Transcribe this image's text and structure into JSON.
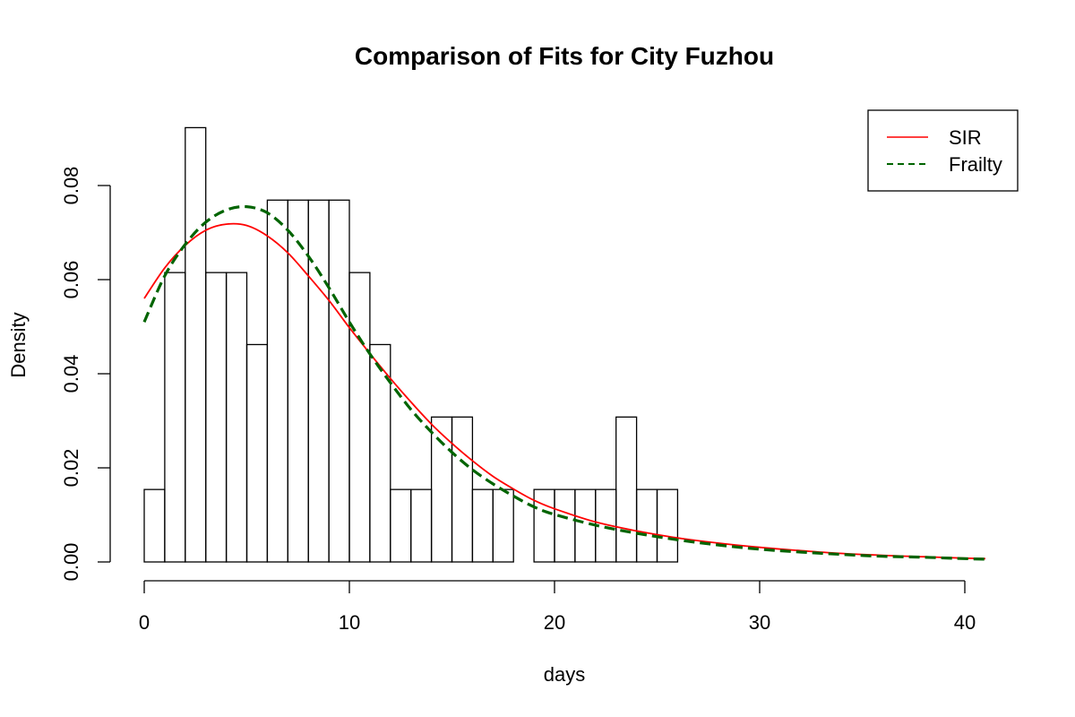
{
  "chart_data": {
    "type": "bar",
    "title": "Comparison of Fits for City Fuzhou",
    "xlabel": "days",
    "ylabel": "Density",
    "xlim": [
      0,
      41
    ],
    "ylim": [
      0,
      0.092
    ],
    "x_ticks": [
      0,
      10,
      20,
      30,
      40
    ],
    "x_tick_labels": [
      "0",
      "10",
      "20",
      "30",
      "40"
    ],
    "y_ticks": [
      0,
      0.02,
      0.04,
      0.06,
      0.08
    ],
    "y_tick_labels": [
      "0.00",
      "0.02",
      "0.04",
      "0.06",
      "0.08"
    ],
    "histogram": {
      "bin_starts": [
        0,
        1,
        2,
        3,
        4,
        5,
        6,
        7,
        8,
        9,
        10,
        11,
        12,
        13,
        14,
        15,
        16,
        17,
        18,
        19,
        20,
        21,
        22,
        23,
        24,
        25
      ],
      "bin_width": 1,
      "densities": [
        0.0154,
        0.0615,
        0.0923,
        0.0615,
        0.0615,
        0.0462,
        0.0769,
        0.0769,
        0.0769,
        0.0769,
        0.0615,
        0.0462,
        0.0154,
        0.0154,
        0.0308,
        0.0308,
        0.0154,
        0.0154,
        0.0,
        0.0154,
        0.0154,
        0.0154,
        0.0154,
        0.0308,
        0.0154,
        0.0154
      ]
    },
    "series": [
      {
        "name": "SIR",
        "color": "#ff0000",
        "style": "solid",
        "x": [
          0,
          1,
          2,
          3,
          4,
          5,
          6,
          7,
          8,
          9,
          10,
          11,
          12,
          13,
          14,
          15,
          16,
          17,
          18,
          19,
          20,
          22,
          24,
          26,
          28,
          30,
          32,
          34,
          36,
          38,
          40,
          41
        ],
        "y": [
          0.056,
          0.0625,
          0.0673,
          0.0705,
          0.0718,
          0.0715,
          0.0693,
          0.0657,
          0.0608,
          0.0556,
          0.0498,
          0.0443,
          0.039,
          0.034,
          0.0293,
          0.0252,
          0.0215,
          0.0182,
          0.0155,
          0.0131,
          0.0113,
          0.0085,
          0.0066,
          0.0051,
          0.004,
          0.0031,
          0.0024,
          0.0018,
          0.0014,
          0.0011,
          0.0008,
          0.0007
        ]
      },
      {
        "name": "Frailty",
        "color": "#006400",
        "style": "dashed",
        "x": [
          0,
          1,
          2,
          3,
          4,
          5,
          6,
          7,
          8,
          9,
          10,
          11,
          12,
          13,
          14,
          15,
          16,
          17,
          18,
          19,
          20,
          22,
          24,
          26,
          28,
          30,
          32,
          34,
          36,
          38,
          40,
          41
        ],
        "y": [
          0.051,
          0.0608,
          0.0675,
          0.0722,
          0.0748,
          0.0755,
          0.0742,
          0.0705,
          0.065,
          0.0583,
          0.051,
          0.0442,
          0.0381,
          0.0324,
          0.0276,
          0.0233,
          0.0196,
          0.0166,
          0.014,
          0.0117,
          0.0101,
          0.0078,
          0.0061,
          0.0047,
          0.0036,
          0.0027,
          0.0021,
          0.0016,
          0.0012,
          0.001,
          0.0007,
          0.0006
        ]
      }
    ],
    "legend": {
      "position": "top-right",
      "entries": [
        "SIR",
        "Frailty"
      ]
    },
    "grid": false
  }
}
